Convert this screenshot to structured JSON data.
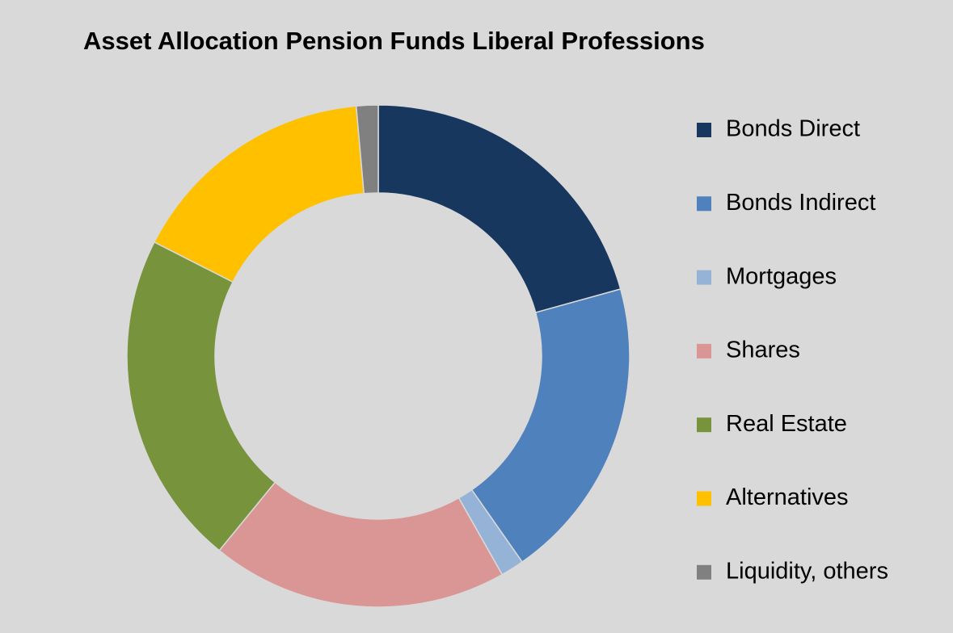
{
  "chart_data": {
    "type": "donut",
    "title": "Asset Allocation Pension Funds Liberal Professions",
    "categories": [
      "Bonds Direct",
      "Bonds Indirect",
      "Mortgages",
      "Shares",
      "Real Estate",
      "Alternatives",
      "Liquidity, others"
    ],
    "values": [
      20.7,
      19.6,
      1.5,
      19.1,
      21.6,
      16.1,
      1.4
    ],
    "colors": [
      "#17375e",
      "#4f81bd",
      "#95b3d7",
      "#d99694",
      "#77933c",
      "#ffc000",
      "#808080"
    ],
    "legend": "right"
  }
}
